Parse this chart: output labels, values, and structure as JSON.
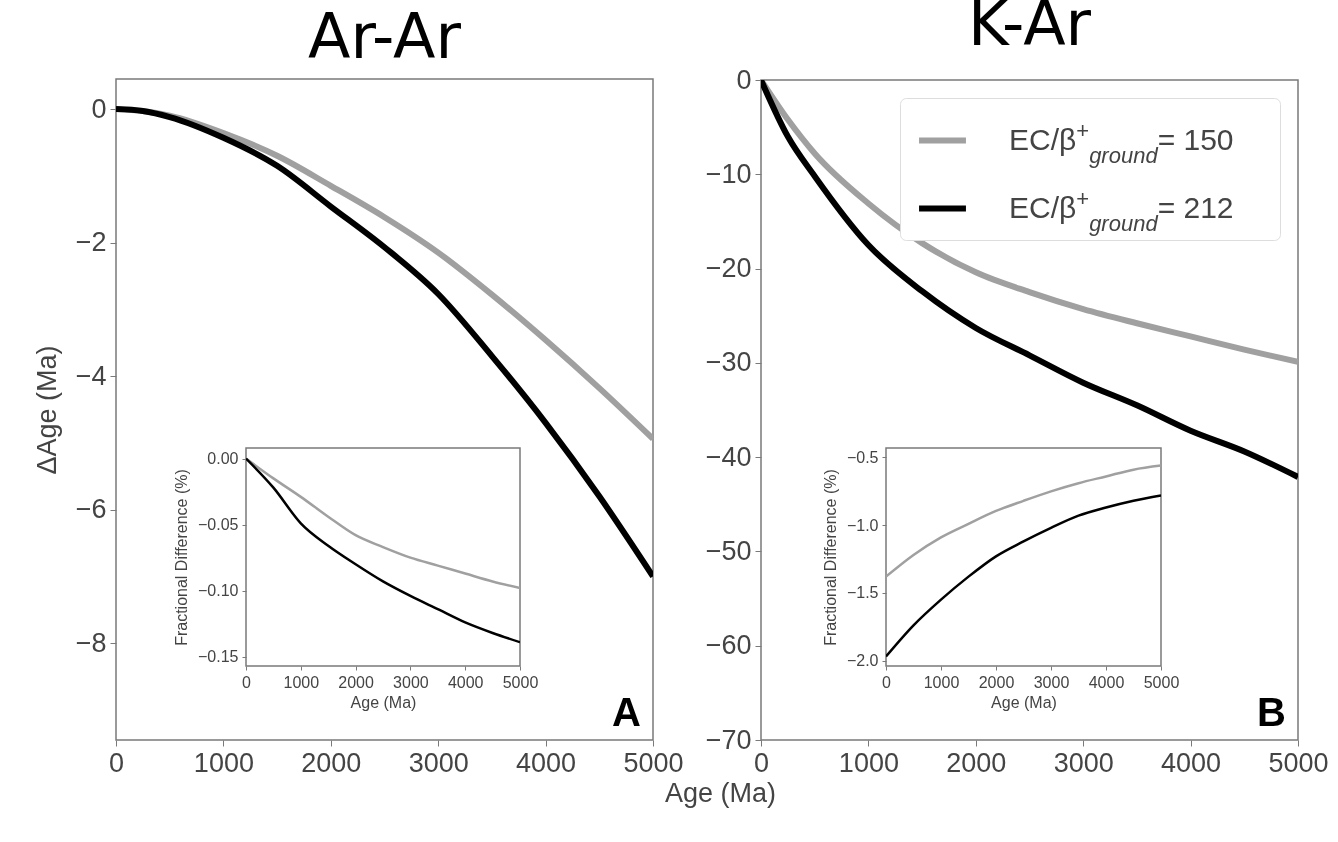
{
  "chart_data": [
    {
      "type": "line",
      "title": "Ar-Ar",
      "xlabel": "Age (Ma)",
      "ylabel": "ΔAge (Ma)",
      "x": [
        0,
        250,
        500,
        1000,
        1500,
        2000,
        2500,
        3000,
        3500,
        4000,
        4500,
        5000
      ],
      "xlim": [
        0,
        5000
      ],
      "xticks": [
        0,
        1000,
        2000,
        3000,
        4000,
        5000
      ],
      "ylim": [
        -9.45,
        0.45
      ],
      "yticks": [
        0,
        -2,
        -4,
        -6,
        -8
      ],
      "grid": false,
      "annotations": [
        "A"
      ],
      "series": [
        {
          "color": "#a0a0a0",
          "values": [
            0,
            -0.03,
            -0.1,
            -0.36,
            -0.7,
            -1.15,
            -1.62,
            -2.15,
            -2.78,
            -3.46,
            -4.18,
            -4.94
          ]
        },
        {
          "color": "#000000",
          "values": [
            0,
            -0.03,
            -0.12,
            -0.43,
            -0.85,
            -1.46,
            -2.07,
            -2.77,
            -3.7,
            -4.7,
            -5.8,
            -7.0
          ]
        }
      ]
    },
    {
      "type": "line",
      "xlabel": "Age (Ma)",
      "ylabel": "Fractional Difference (%)",
      "x": [
        0,
        500,
        1000,
        1500,
        2000,
        2500,
        3000,
        3500,
        4000,
        4500,
        5000
      ],
      "xlim": [
        0,
        5000
      ],
      "xticks": [
        0,
        1000,
        2000,
        3000,
        4000,
        5000
      ],
      "ylim": [
        -0.157,
        0.008
      ],
      "yticks": [
        {
          "value": 0,
          "label": "0.00"
        },
        {
          "value": -0.05,
          "label": "−0.05"
        },
        {
          "value": -0.1,
          "label": "−0.10"
        },
        {
          "value": -0.15,
          "label": "−0.15"
        }
      ],
      "grid": false,
      "series": [
        {
          "color": "#a0a0a0",
          "values": [
            0,
            -0.015,
            -0.029,
            -0.044,
            -0.058,
            -0.067,
            -0.075,
            -0.081,
            -0.087,
            -0.093,
            -0.098
          ]
        },
        {
          "color": "#000000",
          "values": [
            0,
            -0.022,
            -0.049,
            -0.066,
            -0.08,
            -0.093,
            -0.104,
            -0.114,
            -0.124,
            -0.132,
            -0.139
          ]
        }
      ]
    },
    {
      "type": "line",
      "title": "K-Ar",
      "x": [
        0,
        250,
        500,
        1000,
        1500,
        2000,
        2500,
        3000,
        3500,
        4000,
        4500,
        5000
      ],
      "xlim": [
        0,
        5000
      ],
      "xticks": [
        0,
        1000,
        2000,
        3000,
        4000,
        5000
      ],
      "ylim": [
        -70,
        0
      ],
      "yticks": [
        0,
        -10,
        -20,
        -30,
        -40,
        -50,
        -60,
        -70
      ],
      "grid": false,
      "legend": "top right",
      "annotations": [
        "B"
      ],
      "series": [
        {
          "name": "EC/β$^{+}$$_{ground}$= 150",
          "color": "#a0a0a0",
          "values": [
            0,
            -4.2,
            -7.8,
            -13.1,
            -17.3,
            -20.4,
            -22.5,
            -24.3,
            -25.8,
            -27.2,
            -28.6,
            -29.9
          ]
        },
        {
          "name": "EC/β$^{+}$$_{ground}$= 212",
          "color": "#000000",
          "values": [
            0,
            -6.0,
            -10.2,
            -17.5,
            -22.4,
            -26.3,
            -29.2,
            -32.1,
            -34.5,
            -37.2,
            -39.4,
            -42.1
          ]
        }
      ]
    },
    {
      "type": "line",
      "xlabel": "Age (Ma)",
      "ylabel": "Fractional Difference (%)",
      "x": [
        0,
        500,
        1000,
        1500,
        2000,
        2500,
        3000,
        3500,
        4000,
        4500,
        5000
      ],
      "xlim": [
        0,
        5000
      ],
      "xticks": [
        0,
        1000,
        2000,
        3000,
        4000,
        5000
      ],
      "ylim": [
        -2.04,
        -0.43
      ],
      "yticks": [
        {
          "value": -0.5,
          "label": "−0.5"
        },
        {
          "value": -1,
          "label": "−1.0"
        },
        {
          "value": -1.5,
          "label": "−1.5"
        },
        {
          "value": -2,
          "label": "−2.0"
        }
      ],
      "grid": false,
      "series": [
        {
          "color": "#a0a0a0",
          "values": [
            -1.38,
            -1.22,
            -1.09,
            -0.99,
            -0.895,
            -0.82,
            -0.75,
            -0.69,
            -0.64,
            -0.59,
            -0.56
          ]
        },
        {
          "color": "#000000",
          "values": [
            -1.97,
            -1.74,
            -1.55,
            -1.38,
            -1.23,
            -1.12,
            -1.02,
            -0.93,
            -0.87,
            -0.82,
            -0.78
          ]
        }
      ]
    }
  ]
}
